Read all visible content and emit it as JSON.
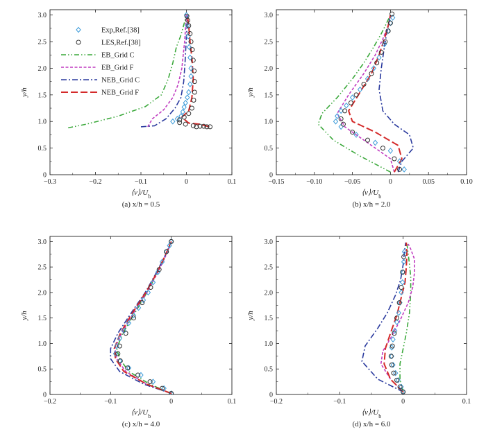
{
  "figure": {
    "legend": [
      {
        "label": "Exp,Ref.[38]",
        "marker": "diamond",
        "color": "#3b9bd9"
      },
      {
        "label": "LES,Ref.[38]",
        "marker": "circle",
        "color": "#333333"
      },
      {
        "label": "EB_Grid C",
        "dash": "dashdotdot",
        "color": "#3aa83a"
      },
      {
        "label": "EB_Grid F",
        "dash": "dash-short",
        "color": "#c03cc0"
      },
      {
        "label": "NEB_Grid C",
        "dash": "dashdot",
        "color": "#2a3a9e"
      },
      {
        "label": "NEB_Grid F",
        "dash": "dash-long",
        "color": "#d42a2a"
      }
    ]
  },
  "chart_data": [
    {
      "type": "line",
      "caption": "(a) x/h = 0.5",
      "xlabel": "⟨v⟩/U_b",
      "ylabel": "y/h",
      "xlim": [
        -0.3,
        0.1
      ],
      "ylim": [
        0,
        3.1
      ],
      "xticks": [
        "−0.3",
        "−0.2",
        "−0.1",
        "0",
        "0.1"
      ],
      "xtick_vals": [
        -0.3,
        -0.2,
        -0.1,
        0,
        0.1
      ],
      "yticks": [
        "0",
        "0.5",
        "1.0",
        "1.5",
        "2.0",
        "2.5",
        "3.0"
      ],
      "ytick_vals": [
        0,
        0.5,
        1.0,
        1.5,
        2.0,
        2.5,
        3.0
      ],
      "series": [
        {
          "name": "EB_Grid C",
          "x": [
            -0.26,
            -0.22,
            -0.15,
            -0.09,
            -0.055,
            -0.04,
            -0.03,
            -0.022,
            -0.013,
            -0.008,
            -0.003,
            0
          ],
          "y": [
            0.88,
            0.95,
            1.1,
            1.28,
            1.5,
            1.8,
            2.1,
            2.4,
            2.6,
            2.75,
            2.9,
            3.0
          ]
        },
        {
          "name": "EB_Grid F",
          "x": [
            -0.085,
            -0.075,
            -0.05,
            -0.03,
            -0.018,
            -0.01,
            -0.004,
            0
          ],
          "y": [
            0.9,
            1.05,
            1.22,
            1.45,
            1.7,
            2.0,
            2.5,
            3.0
          ]
        },
        {
          "name": "NEB_Grid C",
          "x": [
            -0.1,
            -0.07,
            -0.045,
            -0.025,
            -0.012,
            -0.006,
            -0.003,
            0,
            0.003
          ],
          "y": [
            0.9,
            0.92,
            1.05,
            1.25,
            1.45,
            1.75,
            2.1,
            2.6,
            3.0
          ]
        },
        {
          "name": "NEB_Grid F",
          "x": [
            0.05,
            0.03,
            0.005,
            -0.01,
            0.005,
            0.012,
            0.015,
            0.012,
            0.008,
            0.005,
            0.002
          ],
          "y": [
            0.9,
            0.95,
            0.97,
            1.08,
            1.2,
            1.45,
            1.8,
            2.2,
            2.5,
            2.8,
            3.0
          ]
        },
        {
          "name": "Exp,Ref.[38]",
          "x": [
            -0.03,
            -0.02,
            -0.012,
            -0.008,
            -0.005,
            -0.002,
            0.002,
            0.005,
            0.008,
            0.01,
            0.01,
            0.008,
            0.006,
            0.004,
            0.002,
            0
          ],
          "y": [
            1.0,
            1.05,
            1.1,
            1.18,
            1.27,
            1.35,
            1.45,
            1.55,
            1.7,
            1.85,
            2.0,
            2.2,
            2.4,
            2.6,
            2.8,
            3.0
          ]
        },
        {
          "name": "LES,Ref.[38]",
          "x": [
            0.052,
            0.045,
            0.038,
            0.03,
            0.022,
            0.015,
            -0.002,
            -0.015,
            -0.015,
            -0.005,
            0.005,
            0.012,
            0.016,
            0.018,
            0.018,
            0.017,
            0.015,
            0.013,
            0.01,
            0.008,
            0.005,
            0.003,
            0.001
          ],
          "y": [
            0.9,
            0.9,
            0.91,
            0.91,
            0.9,
            0.92,
            0.95,
            0.98,
            1.03,
            1.08,
            1.15,
            1.25,
            1.4,
            1.55,
            1.75,
            1.95,
            2.15,
            2.35,
            2.5,
            2.65,
            2.8,
            2.9,
            2.98
          ]
        }
      ]
    },
    {
      "type": "line",
      "caption": "(b) x/h = 2.0",
      "xlabel": "⟨v⟩/U_b",
      "ylabel": "y/h",
      "xlim": [
        -0.15,
        0.1
      ],
      "ylim": [
        0,
        3.1
      ],
      "xticks": [
        "−0.15",
        "−0.10",
        "−0.05",
        "0",
        "0.05",
        "0.10"
      ],
      "xtick_vals": [
        -0.15,
        -0.1,
        -0.05,
        0,
        0.05,
        0.1
      ],
      "yticks": [
        "0",
        "0.5",
        "1.0",
        "1.5",
        "2.0",
        "2.5",
        "3.0"
      ],
      "ytick_vals": [
        0,
        0.5,
        1.0,
        1.5,
        2.0,
        2.5,
        3.0
      ],
      "series": [
        {
          "name": "EB_Grid C",
          "x": [
            0,
            -0.04,
            -0.075,
            -0.095,
            -0.09,
            -0.07,
            -0.05,
            -0.035,
            -0.022,
            -0.012,
            -0.005,
            0
          ],
          "y": [
            0.05,
            0.35,
            0.65,
            0.95,
            1.15,
            1.45,
            1.8,
            2.1,
            2.4,
            2.65,
            2.85,
            3.0
          ]
        },
        {
          "name": "EB_Grid F",
          "x": [
            0.005,
            0,
            -0.03,
            -0.06,
            -0.07,
            -0.055,
            -0.035,
            -0.02,
            -0.01,
            -0.003,
            0
          ],
          "y": [
            0.05,
            0.3,
            0.6,
            0.9,
            1.15,
            1.5,
            1.9,
            2.25,
            2.55,
            2.8,
            3.0
          ]
        },
        {
          "name": "NEB_Grid C",
          "x": [
            0.01,
            0.015,
            0.03,
            0.025,
            0.005,
            -0.01,
            -0.015,
            -0.012,
            -0.008,
            -0.005,
            -0.002,
            0
          ],
          "y": [
            0.05,
            0.25,
            0.5,
            0.75,
            0.95,
            1.2,
            1.6,
            2.0,
            2.4,
            2.65,
            2.85,
            3.0
          ]
        },
        {
          "name": "NEB_Grid F",
          "x": [
            0.005,
            0.015,
            0.01,
            -0.02,
            -0.05,
            -0.055,
            -0.04,
            -0.025,
            -0.015,
            -0.008,
            -0.003,
            0
          ],
          "y": [
            0.05,
            0.3,
            0.55,
            0.8,
            1.0,
            1.2,
            1.55,
            1.9,
            2.25,
            2.55,
            2.8,
            3.0
          ]
        },
        {
          "name": "Exp,Ref.[38]",
          "x": [
            0.018,
            0.012,
            0,
            -0.02,
            -0.045,
            -0.065,
            -0.072,
            -0.07,
            -0.065,
            -0.058,
            -0.05,
            -0.04,
            -0.03,
            -0.022,
            -0.015,
            -0.008,
            -0.003,
            0,
            0.003
          ],
          "y": [
            0.1,
            0.25,
            0.45,
            0.6,
            0.75,
            0.9,
            1.0,
            1.1,
            1.2,
            1.3,
            1.45,
            1.6,
            1.8,
            2.0,
            2.2,
            2.45,
            2.7,
            2.85,
            2.95
          ]
        },
        {
          "name": "LES,Ref.[38]",
          "x": [
            0.012,
            0.005,
            -0.01,
            -0.03,
            -0.05,
            -0.062,
            -0.065,
            -0.06,
            -0.052,
            -0.045,
            -0.035,
            -0.025,
            -0.018,
            -0.012,
            -0.007,
            -0.003,
            0,
            0.002
          ],
          "y": [
            0.1,
            0.3,
            0.5,
            0.65,
            0.8,
            0.95,
            1.05,
            1.2,
            1.35,
            1.5,
            1.7,
            1.9,
            2.1,
            2.3,
            2.5,
            2.7,
            2.85,
            3.02
          ]
        }
      ]
    },
    {
      "type": "line",
      "caption": "(c) x/h = 4.0",
      "xlabel": "⟨v⟩/U_b",
      "ylabel": "y/h",
      "xlim": [
        -0.2,
        0.1
      ],
      "ylim": [
        0,
        3.1
      ],
      "xticks": [
        "−0.2",
        "−0.1",
        "0",
        "0.1"
      ],
      "xtick_vals": [
        -0.2,
        -0.1,
        0,
        0.1
      ],
      "yticks": [
        "0",
        "0.5",
        "1.0",
        "1.5",
        "2.0",
        "2.5",
        "3.0"
      ],
      "ytick_vals": [
        0,
        0.5,
        1.0,
        1.5,
        2.0,
        2.5,
        3.0
      ],
      "series": [
        {
          "name": "EB_Grid C",
          "x": [
            0,
            -0.035,
            -0.07,
            -0.085,
            -0.09,
            -0.08,
            -0.06,
            -0.04,
            -0.022,
            -0.008,
            0
          ],
          "y": [
            0.02,
            0.2,
            0.45,
            0.7,
            0.9,
            1.2,
            1.6,
            2.0,
            2.4,
            2.75,
            3.0
          ]
        },
        {
          "name": "EB_Grid F",
          "x": [
            0,
            -0.04,
            -0.075,
            -0.09,
            -0.093,
            -0.082,
            -0.062,
            -0.04,
            -0.022,
            -0.008,
            0
          ],
          "y": [
            0.02,
            0.2,
            0.45,
            0.7,
            0.9,
            1.2,
            1.6,
            2.0,
            2.4,
            2.75,
            3.0
          ]
        },
        {
          "name": "NEB_Grid C",
          "x": [
            0,
            -0.045,
            -0.085,
            -0.1,
            -0.1,
            -0.088,
            -0.066,
            -0.043,
            -0.024,
            -0.009,
            0
          ],
          "y": [
            0.02,
            0.2,
            0.45,
            0.7,
            0.9,
            1.2,
            1.6,
            2.0,
            2.4,
            2.75,
            3.0
          ]
        },
        {
          "name": "NEB_Grid F",
          "x": [
            0,
            -0.04,
            -0.078,
            -0.092,
            -0.094,
            -0.084,
            -0.064,
            -0.042,
            -0.023,
            -0.009,
            0
          ],
          "y": [
            0.02,
            0.2,
            0.45,
            0.7,
            0.9,
            1.2,
            1.6,
            2.0,
            2.4,
            2.75,
            3.0
          ]
        },
        {
          "name": "Exp,Ref.[38]",
          "x": [
            0,
            -0.012,
            -0.03,
            -0.05,
            -0.07,
            -0.085,
            -0.092,
            -0.09,
            -0.085,
            -0.078,
            -0.07,
            -0.062,
            -0.054,
            -0.046,
            -0.038,
            -0.03,
            -0.022,
            -0.015,
            -0.008,
            -0.003,
            0
          ],
          "y": [
            0.02,
            0.12,
            0.25,
            0.38,
            0.52,
            0.66,
            0.8,
            0.95,
            1.1,
            1.25,
            1.4,
            1.55,
            1.7,
            1.85,
            2.0,
            2.2,
            2.4,
            2.6,
            2.8,
            2.92,
            3.0
          ]
        },
        {
          "name": "LES,Ref.[38]",
          "x": [
            0,
            -0.015,
            -0.035,
            -0.055,
            -0.072,
            -0.084,
            -0.088,
            -0.085,
            -0.075,
            -0.062,
            -0.048,
            -0.034,
            -0.02,
            -0.008,
            0
          ],
          "y": [
            0.02,
            0.12,
            0.25,
            0.38,
            0.52,
            0.66,
            0.8,
            0.95,
            1.2,
            1.5,
            1.8,
            2.1,
            2.45,
            2.8,
            3.0
          ]
        }
      ]
    },
    {
      "type": "line",
      "caption": "(d) x/h = 6.0",
      "xlabel": "⟨v⟩/U_b",
      "ylabel": "y/h",
      "xlim": [
        -0.2,
        0.1
      ],
      "ylim": [
        0,
        3.1
      ],
      "xticks": [
        "−0.2",
        "−0.1",
        "0",
        "0.1"
      ],
      "xtick_vals": [
        -0.2,
        -0.1,
        0,
        0.1
      ],
      "yticks": [
        "0",
        "0.5",
        "1.0",
        "1.5",
        "2.0",
        "2.5",
        "3.0"
      ],
      "ytick_vals": [
        0,
        0.5,
        1.0,
        1.5,
        2.0,
        2.5,
        3.0
      ],
      "series": [
        {
          "name": "EB_Grid C",
          "x": [
            0,
            -0.005,
            -0.005,
            0,
            0.005,
            0.01,
            0.012,
            0.012,
            0.01,
            0.008,
            0.006
          ],
          "y": [
            0.05,
            0.3,
            0.6,
            0.9,
            1.2,
            1.6,
            2.0,
            2.3,
            2.55,
            2.75,
            2.95
          ]
        },
        {
          "name": "EB_Grid F",
          "x": [
            0,
            -0.02,
            -0.035,
            -0.032,
            -0.02,
            -0.005,
            0.008,
            0.015,
            0.018,
            0.018,
            0.012,
            0.008
          ],
          "y": [
            0.05,
            0.3,
            0.6,
            0.85,
            1.1,
            1.45,
            1.8,
            2.1,
            2.4,
            2.65,
            2.85,
            2.95
          ]
        },
        {
          "name": "NEB_Grid C",
          "x": [
            0,
            -0.04,
            -0.065,
            -0.06,
            -0.04,
            -0.025,
            -0.012,
            -0.004,
            0,
            0.002,
            0.004
          ],
          "y": [
            0.05,
            0.3,
            0.65,
            0.95,
            1.3,
            1.6,
            1.95,
            2.25,
            2.55,
            2.8,
            2.98
          ]
        },
        {
          "name": "NEB_Grid F",
          "x": [
            0,
            -0.02,
            -0.03,
            -0.028,
            -0.02,
            -0.01,
            -0.003,
            0.003,
            0.005,
            0.006,
            0.005
          ],
          "y": [
            0.05,
            0.3,
            0.6,
            0.9,
            1.2,
            1.55,
            1.9,
            2.2,
            2.5,
            2.75,
            2.98
          ]
        },
        {
          "name": "Exp,Ref.[38]",
          "x": [
            0,
            -0.003,
            -0.008,
            -0.012,
            -0.016,
            -0.018,
            -0.018,
            -0.016,
            -0.013,
            -0.01,
            -0.007,
            -0.005,
            -0.003,
            -0.001,
            0,
            0.001,
            0.002
          ],
          "y": [
            0.05,
            0.15,
            0.28,
            0.42,
            0.58,
            0.75,
            0.92,
            1.08,
            1.25,
            1.42,
            1.6,
            1.8,
            2.0,
            2.2,
            2.4,
            2.6,
            2.8
          ]
        },
        {
          "name": "LES,Ref.[38]",
          "x": [
            0,
            -0.005,
            -0.01,
            -0.015,
            -0.018,
            -0.019,
            -0.017,
            -0.014,
            -0.01,
            -0.006,
            -0.003,
            -0.001,
            0.001
          ],
          "y": [
            0.05,
            0.15,
            0.28,
            0.42,
            0.58,
            0.75,
            0.95,
            1.2,
            1.5,
            1.8,
            2.1,
            2.4,
            2.7
          ]
        }
      ]
    }
  ]
}
